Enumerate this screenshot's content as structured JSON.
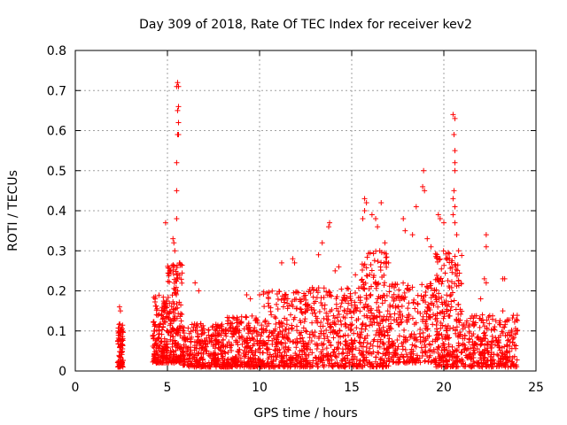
{
  "chart_data": {
    "type": "scatter",
    "title": "Day 309 of 2018, Rate Of TEC Index for receiver kev2",
    "xlabel": "GPS time / hours",
    "ylabel": "ROTI / TECUs",
    "xlim": [
      0,
      25
    ],
    "ylim": [
      0,
      0.8
    ],
    "xticks": [
      0,
      5,
      10,
      15,
      20,
      25
    ],
    "yticks": [
      0,
      0.1,
      0.2,
      0.3,
      0.4,
      0.5,
      0.6,
      0.7,
      0.8
    ],
    "grid": true,
    "marker": "+",
    "color": "#ff0000",
    "series": [
      {
        "name": "kev2",
        "clusters": [
          {
            "x_start": 2.3,
            "x_end": 2.6,
            "y_min": 0.01,
            "y_max": 0.12,
            "n": 90
          },
          {
            "x_start": 4.2,
            "x_end": 5.0,
            "y_min": 0.02,
            "y_max": 0.19,
            "n": 170
          },
          {
            "x_start": 5.0,
            "x_end": 5.8,
            "y_min": 0.02,
            "y_max": 0.27,
            "n": 180
          },
          {
            "x_start": 5.8,
            "x_end": 8.2,
            "y_min": 0.01,
            "y_max": 0.12,
            "n": 320
          },
          {
            "x_start": 8.2,
            "x_end": 10.2,
            "y_min": 0.01,
            "y_max": 0.14,
            "n": 260
          },
          {
            "x_start": 10.2,
            "x_end": 12.5,
            "y_min": 0.01,
            "y_max": 0.2,
            "n": 300
          },
          {
            "x_start": 12.5,
            "x_end": 15.5,
            "y_min": 0.01,
            "y_max": 0.21,
            "n": 360
          },
          {
            "x_start": 15.5,
            "x_end": 17.0,
            "y_min": 0.01,
            "y_max": 0.3,
            "n": 240
          },
          {
            "x_start": 17.0,
            "x_end": 19.5,
            "y_min": 0.02,
            "y_max": 0.22,
            "n": 280
          },
          {
            "x_start": 19.5,
            "x_end": 21.0,
            "y_min": 0.01,
            "y_max": 0.3,
            "n": 260
          },
          {
            "x_start": 21.0,
            "x_end": 24.0,
            "y_min": 0.01,
            "y_max": 0.14,
            "n": 320
          }
        ],
        "points": [
          {
            "x": 2.4,
            "y": 0.16
          },
          {
            "x": 2.45,
            "y": 0.15
          },
          {
            "x": 4.9,
            "y": 0.37
          },
          {
            "x": 5.3,
            "y": 0.33
          },
          {
            "x": 5.35,
            "y": 0.32
          },
          {
            "x": 5.4,
            "y": 0.3
          },
          {
            "x": 5.5,
            "y": 0.38
          },
          {
            "x": 5.5,
            "y": 0.45
          },
          {
            "x": 5.5,
            "y": 0.52
          },
          {
            "x": 5.55,
            "y": 0.59
          },
          {
            "x": 5.6,
            "y": 0.59
          },
          {
            "x": 5.6,
            "y": 0.62
          },
          {
            "x": 5.55,
            "y": 0.65
          },
          {
            "x": 5.6,
            "y": 0.66
          },
          {
            "x": 5.5,
            "y": 0.71
          },
          {
            "x": 5.6,
            "y": 0.71
          },
          {
            "x": 5.55,
            "y": 0.72
          },
          {
            "x": 6.5,
            "y": 0.22
          },
          {
            "x": 6.7,
            "y": 0.2
          },
          {
            "x": 9.3,
            "y": 0.19
          },
          {
            "x": 9.5,
            "y": 0.18
          },
          {
            "x": 10.0,
            "y": 0.19
          },
          {
            "x": 11.2,
            "y": 0.27
          },
          {
            "x": 11.8,
            "y": 0.28
          },
          {
            "x": 11.9,
            "y": 0.27
          },
          {
            "x": 13.2,
            "y": 0.29
          },
          {
            "x": 13.4,
            "y": 0.32
          },
          {
            "x": 13.8,
            "y": 0.37
          },
          {
            "x": 13.75,
            "y": 0.36
          },
          {
            "x": 14.1,
            "y": 0.25
          },
          {
            "x": 14.3,
            "y": 0.26
          },
          {
            "x": 15.2,
            "y": 0.24
          },
          {
            "x": 15.6,
            "y": 0.38
          },
          {
            "x": 15.7,
            "y": 0.4
          },
          {
            "x": 15.7,
            "y": 0.43
          },
          {
            "x": 15.8,
            "y": 0.42
          },
          {
            "x": 16.1,
            "y": 0.39
          },
          {
            "x": 16.3,
            "y": 0.38
          },
          {
            "x": 16.4,
            "y": 0.36
          },
          {
            "x": 16.6,
            "y": 0.42
          },
          {
            "x": 16.8,
            "y": 0.32
          },
          {
            "x": 17.0,
            "y": 0.27
          },
          {
            "x": 17.8,
            "y": 0.38
          },
          {
            "x": 17.9,
            "y": 0.35
          },
          {
            "x": 18.3,
            "y": 0.34
          },
          {
            "x": 18.5,
            "y": 0.41
          },
          {
            "x": 18.85,
            "y": 0.46
          },
          {
            "x": 18.9,
            "y": 0.5
          },
          {
            "x": 18.95,
            "y": 0.45
          },
          {
            "x": 19.1,
            "y": 0.33
          },
          {
            "x": 19.3,
            "y": 0.31
          },
          {
            "x": 19.7,
            "y": 0.39
          },
          {
            "x": 19.8,
            "y": 0.38
          },
          {
            "x": 20.0,
            "y": 0.37
          },
          {
            "x": 20.3,
            "y": 0.28
          },
          {
            "x": 20.5,
            "y": 0.64
          },
          {
            "x": 20.6,
            "y": 0.63
          },
          {
            "x": 20.55,
            "y": 0.59
          },
          {
            "x": 20.6,
            "y": 0.55
          },
          {
            "x": 20.6,
            "y": 0.52
          },
          {
            "x": 20.6,
            "y": 0.5
          },
          {
            "x": 20.55,
            "y": 0.45
          },
          {
            "x": 20.5,
            "y": 0.43
          },
          {
            "x": 20.6,
            "y": 0.41
          },
          {
            "x": 20.5,
            "y": 0.39
          },
          {
            "x": 20.6,
            "y": 0.37
          },
          {
            "x": 20.7,
            "y": 0.34
          },
          {
            "x": 20.8,
            "y": 0.3
          },
          {
            "x": 22.0,
            "y": 0.18
          },
          {
            "x": 22.3,
            "y": 0.34
          },
          {
            "x": 22.3,
            "y": 0.31
          },
          {
            "x": 22.2,
            "y": 0.23
          },
          {
            "x": 22.3,
            "y": 0.22
          },
          {
            "x": 23.2,
            "y": 0.23
          },
          {
            "x": 23.3,
            "y": 0.23
          },
          {
            "x": 23.2,
            "y": 0.15
          }
        ]
      }
    ]
  }
}
